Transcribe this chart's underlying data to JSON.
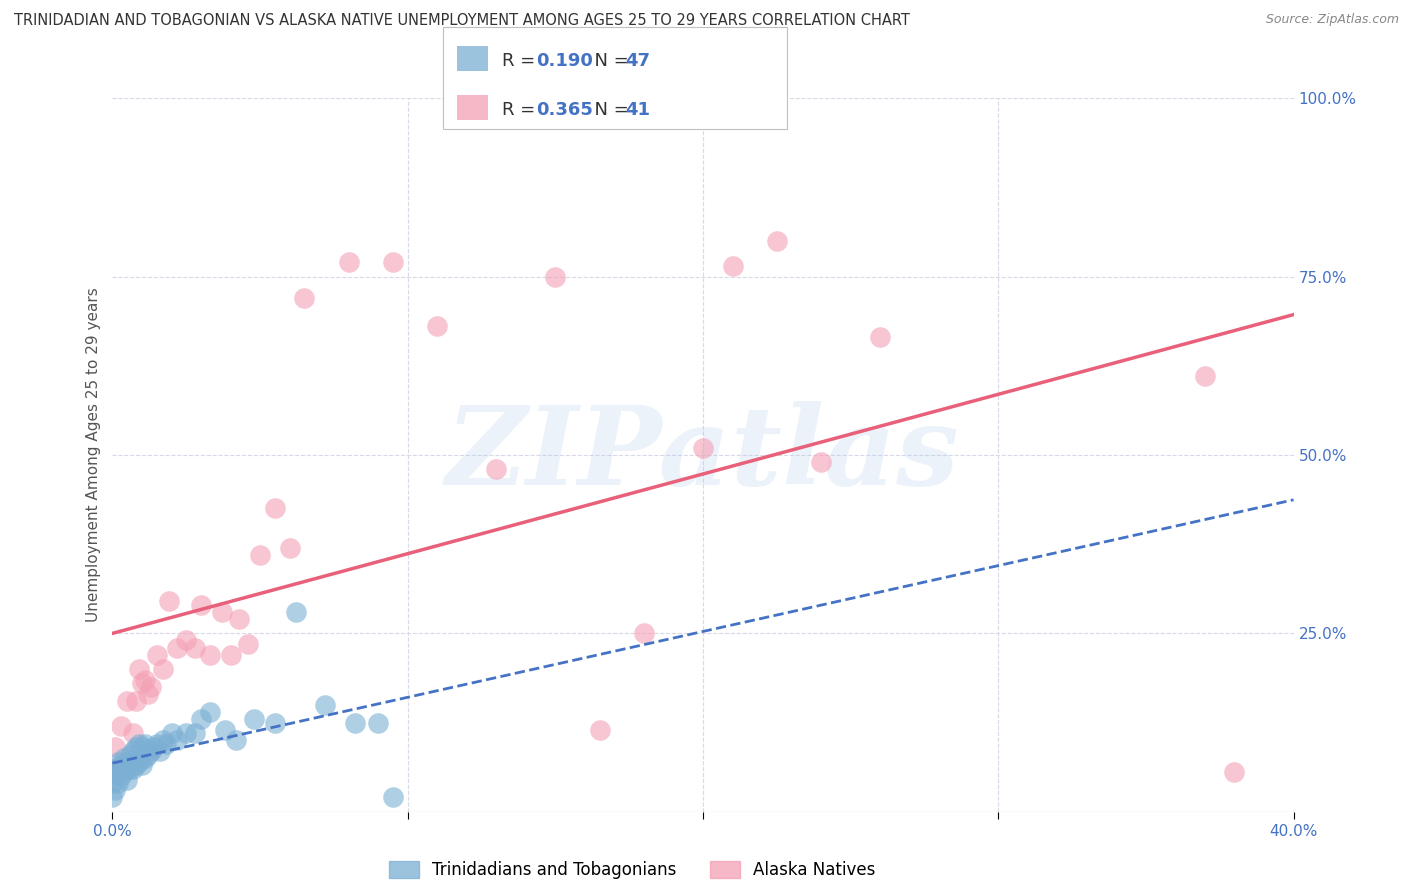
{
  "title": "TRINIDADIAN AND TOBAGONIAN VS ALASKA NATIVE UNEMPLOYMENT AMONG AGES 25 TO 29 YEARS CORRELATION CHART",
  "source": "Source: ZipAtlas.com",
  "ylabel": "Unemployment Among Ages 25 to 29 years",
  "xlim": [
    0.0,
    0.4
  ],
  "ylim": [
    0.0,
    1.0
  ],
  "R_blue": 0.19,
  "N_blue": 47,
  "R_pink": 0.365,
  "N_pink": 41,
  "blue_color": "#7bafd4",
  "pink_color": "#f4a0b5",
  "blue_line_color": "#4472c4",
  "pink_line_color": "#e8607a",
  "legend_label_blue": "Trinidadians and Tobagonians",
  "legend_label_pink": "Alaska Natives",
  "blue_scatter_x": [
    0.0,
    0.0,
    0.0,
    0.001,
    0.001,
    0.002,
    0.002,
    0.003,
    0.003,
    0.004,
    0.004,
    0.005,
    0.005,
    0.006,
    0.006,
    0.007,
    0.007,
    0.008,
    0.008,
    0.009,
    0.009,
    0.01,
    0.01,
    0.011,
    0.011,
    0.012,
    0.013,
    0.014,
    0.015,
    0.016,
    0.017,
    0.018,
    0.02,
    0.022,
    0.025,
    0.028,
    0.03,
    0.033,
    0.038,
    0.042,
    0.048,
    0.055,
    0.062,
    0.072,
    0.082,
    0.09,
    0.095
  ],
  "blue_scatter_y": [
    0.02,
    0.04,
    0.06,
    0.03,
    0.055,
    0.04,
    0.07,
    0.05,
    0.065,
    0.055,
    0.075,
    0.045,
    0.07,
    0.06,
    0.08,
    0.06,
    0.085,
    0.065,
    0.09,
    0.07,
    0.095,
    0.065,
    0.09,
    0.075,
    0.095,
    0.08,
    0.085,
    0.09,
    0.095,
    0.085,
    0.1,
    0.095,
    0.11,
    0.1,
    0.11,
    0.11,
    0.13,
    0.14,
    0.115,
    0.1,
    0.13,
    0.125,
    0.28,
    0.15,
    0.125,
    0.125,
    0.02
  ],
  "pink_scatter_x": [
    0.0,
    0.001,
    0.003,
    0.005,
    0.007,
    0.008,
    0.009,
    0.01,
    0.011,
    0.012,
    0.013,
    0.015,
    0.017,
    0.019,
    0.022,
    0.025,
    0.028,
    0.03,
    0.033,
    0.037,
    0.04,
    0.043,
    0.046,
    0.05,
    0.055,
    0.06,
    0.065,
    0.08,
    0.095,
    0.11,
    0.13,
    0.15,
    0.165,
    0.18,
    0.2,
    0.21,
    0.225,
    0.24,
    0.26,
    0.37,
    0.38
  ],
  "pink_scatter_y": [
    0.06,
    0.09,
    0.12,
    0.155,
    0.11,
    0.155,
    0.2,
    0.18,
    0.185,
    0.165,
    0.175,
    0.22,
    0.2,
    0.295,
    0.23,
    0.24,
    0.23,
    0.29,
    0.22,
    0.28,
    0.22,
    0.27,
    0.235,
    0.36,
    0.425,
    0.37,
    0.72,
    0.77,
    0.77,
    0.68,
    0.48,
    0.75,
    0.115,
    0.25,
    0.51,
    0.765,
    0.8,
    0.49,
    0.665,
    0.61,
    0.055
  ],
  "watermark": "ZIPatlas",
  "background_color": "#ffffff",
  "grid_color": "#d8d8e8"
}
